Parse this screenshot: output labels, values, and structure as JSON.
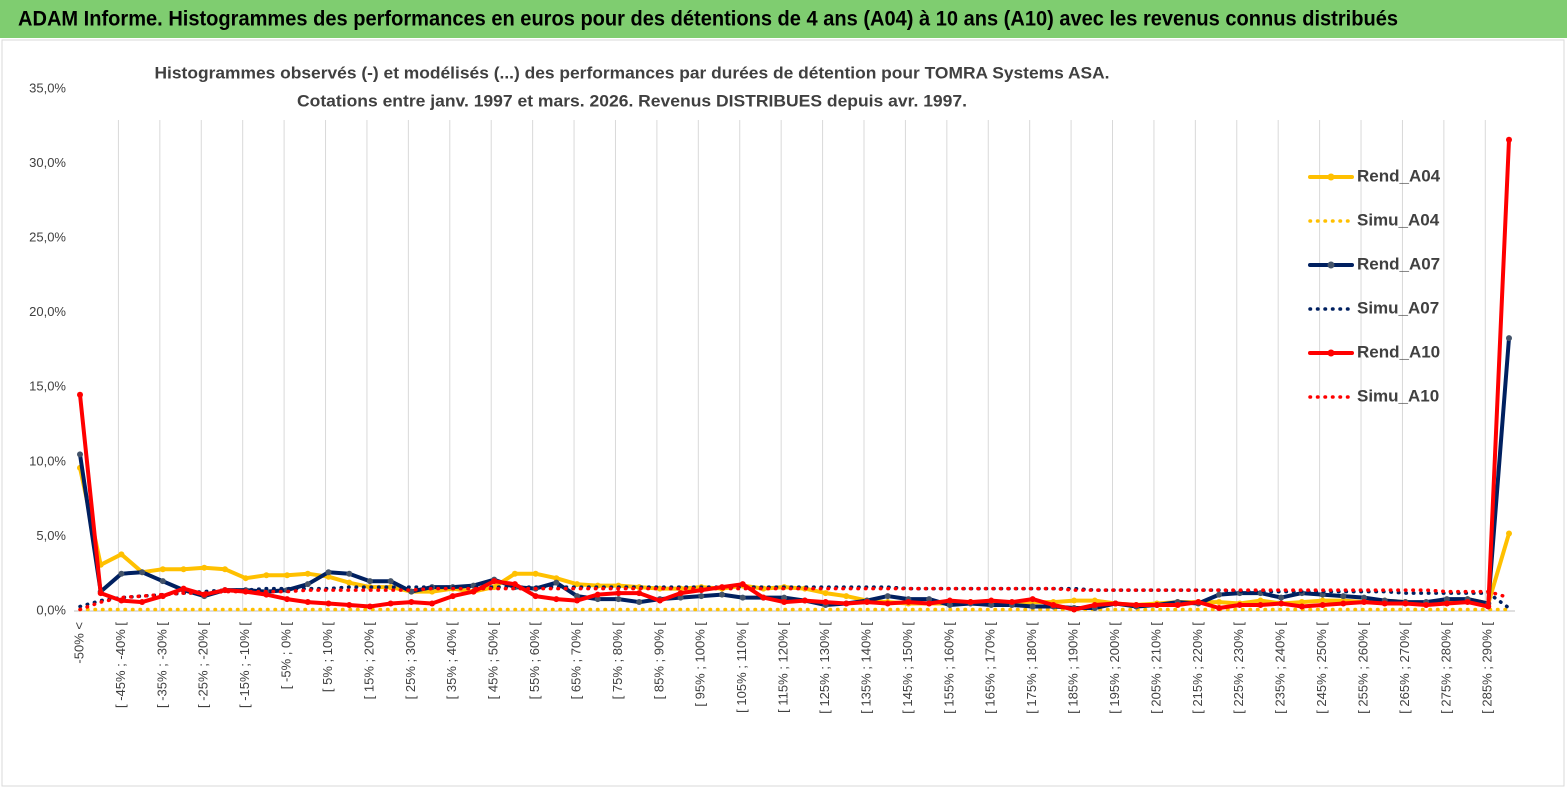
{
  "chart_data": {
    "type": "line",
    "title": "ADAM Informe. Histogrammes des performances en euros pour des détentions de 4 ans (A04) à 10 ans (A10) avec les revenus connus distribués",
    "subtitle": [
      "Histogrammes observés (-) et modélisés (...) des performances par durées de détention pour TOMRA Systems ASA.",
      "Cotations entre janv. 1997 et mars. 2026. Revenus DISTRIBUES depuis avr. 1997."
    ],
    "categories": [
      "-50% <",
      null,
      "[ -45% ; -40% [",
      null,
      "[ -35% ; -30% [",
      null,
      "[ -25% ; -20% [",
      null,
      "[ -15% ; -10% [",
      null,
      "[ -5% ; 0% [",
      null,
      "[ 5% ; 10% [",
      null,
      "[ 15% ; 20% [",
      null,
      "[ 25% ; 30% [",
      null,
      "[ 35% ; 40% [",
      null,
      "[ 45% ; 50% [",
      null,
      "[ 55% ; 60% [",
      null,
      "[ 65% ; 70% [",
      null,
      "[ 75% ; 80% [",
      null,
      "[ 85% ; 90% [",
      null,
      "[ 95% ; 100% [",
      null,
      "[ 105% ; 110% [",
      null,
      "[ 115% ; 120% [",
      null,
      "[ 125% ; 130% [",
      null,
      "[ 135% ; 140% [",
      null,
      "[ 145% ; 150% [",
      null,
      "[ 155% ; 160% [",
      null,
      "[ 165% ; 170% [",
      null,
      "[ 175% ; 180% [",
      null,
      "[ 185% ; 190% [",
      null,
      "[ 195% ; 200% [",
      null,
      "[ 205% ; 210% [",
      null,
      "[ 215% ; 220% [",
      null,
      "[ 225% ; 230% [",
      null,
      "[ 235% ; 240% [",
      null,
      "[ 245% ; 250% [",
      null,
      "[ 255% ; 260% [",
      null,
      "[ 265% ; 270% [",
      null,
      "[ 275% ; 280% [",
      null,
      "[ 285% ; 290% [",
      null
    ],
    "series": [
      {
        "name": "Rend_A04",
        "color": "#ffc000",
        "style": "solid",
        "marker": true,
        "values": [
          9.6,
          3.1,
          3.8,
          2.6,
          2.8,
          2.8,
          2.9,
          2.8,
          2.2,
          2.4,
          2.4,
          2.5,
          2.3,
          1.9,
          1.6,
          1.6,
          1.3,
          1.3,
          1.5,
          1.3,
          1.6,
          2.5,
          2.5,
          2.2,
          1.8,
          1.7,
          1.7,
          1.6,
          1.5,
          1.5,
          1.6,
          1.5,
          1.7,
          1.5,
          1.6,
          1.5,
          1.2,
          1.0,
          0.7,
          0.6,
          0.5,
          0.5,
          0.5,
          0.6,
          0.5,
          0.5,
          0.6,
          0.6,
          0.7,
          0.7,
          0.5,
          0.4,
          0.5,
          0.6,
          0.6,
          0.6,
          0.5,
          0.7,
          0.5,
          0.6,
          0.7,
          0.7,
          0.6,
          0.7,
          0.6,
          0.5,
          0.6,
          0.8,
          0.5,
          5.2
        ]
      },
      {
        "name": "Simu_A04",
        "color": "#ffc000",
        "style": "dotted",
        "marker": false,
        "values": [
          0.1,
          0.1,
          0.1,
          0.1,
          0.1,
          0.1,
          0.1,
          0.1,
          0.1,
          0.1,
          0.1,
          0.1,
          0.1,
          0.1,
          0.1,
          0.1,
          0.1,
          0.1,
          0.1,
          0.1,
          0.1,
          0.1,
          0.1,
          0.1,
          0.1,
          0.1,
          0.1,
          0.1,
          0.1,
          0.1,
          0.1,
          0.1,
          0.1,
          0.1,
          0.1,
          0.1,
          0.1,
          0.1,
          0.1,
          0.1,
          0.1,
          0.1,
          0.1,
          0.1,
          0.1,
          0.1,
          0.1,
          0.1,
          0.1,
          0.1,
          0.1,
          0.1,
          0.1,
          0.1,
          0.1,
          0.1,
          0.1,
          0.1,
          0.1,
          0.1,
          0.1,
          0.1,
          0.1,
          0.1,
          0.1,
          0.1,
          0.1,
          0.1,
          0.1,
          0.1
        ]
      },
      {
        "name": "Rend_A07",
        "color": "#002060",
        "style": "solid",
        "marker": true,
        "values": [
          10.5,
          1.3,
          2.5,
          2.6,
          2.0,
          1.4,
          1.0,
          1.4,
          1.4,
          1.3,
          1.4,
          1.8,
          2.6,
          2.5,
          2.0,
          2.0,
          1.3,
          1.6,
          1.6,
          1.7,
          2.1,
          1.6,
          1.5,
          1.9,
          1.0,
          0.8,
          0.8,
          0.6,
          0.8,
          0.9,
          1.0,
          1.1,
          0.9,
          0.9,
          0.9,
          0.7,
          0.4,
          0.5,
          0.7,
          1.0,
          0.8,
          0.8,
          0.4,
          0.5,
          0.4,
          0.4,
          0.3,
          0.3,
          0.2,
          0.2,
          0.5,
          0.3,
          0.4,
          0.6,
          0.5,
          1.1,
          1.2,
          1.2,
          0.9,
          1.2,
          1.1,
          1.0,
          0.9,
          0.7,
          0.6,
          0.6,
          0.8,
          0.8,
          0.5,
          18.3
        ]
      },
      {
        "name": "Simu_A07",
        "color": "#002060",
        "style": "dotted",
        "marker": false,
        "values": [
          0.3,
          0.7,
          0.9,
          1.0,
          1.1,
          1.2,
          1.3,
          1.4,
          1.4,
          1.5,
          1.5,
          1.5,
          1.5,
          1.6,
          1.6,
          1.6,
          1.6,
          1.6,
          1.6,
          1.6,
          1.6,
          1.6,
          1.6,
          1.6,
          1.6,
          1.6,
          1.6,
          1.6,
          1.6,
          1.6,
          1.6,
          1.6,
          1.6,
          1.6,
          1.6,
          1.6,
          1.6,
          1.6,
          1.6,
          1.6,
          1.5,
          1.5,
          1.5,
          1.5,
          1.5,
          1.5,
          1.5,
          1.5,
          1.5,
          1.4,
          1.4,
          1.4,
          1.4,
          1.4,
          1.4,
          1.4,
          1.3,
          1.3,
          1.3,
          1.3,
          1.3,
          1.3,
          1.3,
          1.3,
          1.2,
          1.2,
          1.2,
          1.2,
          1.2,
          0.2
        ]
      },
      {
        "name": "Rend_A10",
        "color": "#ff0000",
        "style": "solid",
        "marker": true,
        "values": [
          14.5,
          1.2,
          0.7,
          0.6,
          1.0,
          1.5,
          1.1,
          1.4,
          1.3,
          1.1,
          0.8,
          0.6,
          0.5,
          0.4,
          0.3,
          0.5,
          0.6,
          0.5,
          1.0,
          1.3,
          2.0,
          1.8,
          1.0,
          0.8,
          0.7,
          1.1,
          1.2,
          1.2,
          0.7,
          1.2,
          1.4,
          1.6,
          1.8,
          0.9,
          0.6,
          0.7,
          0.6,
          0.5,
          0.6,
          0.5,
          0.6,
          0.5,
          0.7,
          0.6,
          0.7,
          0.6,
          0.8,
          0.4,
          0.1,
          0.4,
          0.5,
          0.4,
          0.4,
          0.4,
          0.6,
          0.2,
          0.4,
          0.4,
          0.5,
          0.3,
          0.4,
          0.5,
          0.6,
          0.5,
          0.5,
          0.4,
          0.5,
          0.6,
          0.3,
          31.6
        ]
      },
      {
        "name": "Simu_A10",
        "color": "#ff0000",
        "style": "dotted",
        "marker": false,
        "values": [
          0.1,
          0.6,
          0.9,
          1.0,
          1.1,
          1.2,
          1.2,
          1.3,
          1.3,
          1.3,
          1.3,
          1.4,
          1.4,
          1.4,
          1.4,
          1.4,
          1.4,
          1.5,
          1.5,
          1.5,
          1.5,
          1.5,
          1.5,
          1.5,
          1.5,
          1.5,
          1.5,
          1.5,
          1.5,
          1.5,
          1.5,
          1.5,
          1.5,
          1.5,
          1.5,
          1.5,
          1.5,
          1.5,
          1.5,
          1.5,
          1.5,
          1.5,
          1.5,
          1.5,
          1.5,
          1.5,
          1.5,
          1.5,
          1.4,
          1.4,
          1.4,
          1.4,
          1.4,
          1.4,
          1.4,
          1.4,
          1.4,
          1.4,
          1.4,
          1.4,
          1.4,
          1.4,
          1.4,
          1.4,
          1.4,
          1.4,
          1.3,
          1.3,
          1.3,
          0.9
        ]
      }
    ],
    "ylim": [
      0,
      35
    ],
    "yticks": [
      {
        "value": 0,
        "label": "0,0%"
      },
      {
        "value": 5,
        "label": "5,0%"
      },
      {
        "value": 10,
        "label": "10,0%"
      },
      {
        "value": 15,
        "label": "15,0%"
      },
      {
        "value": 20,
        "label": "20,0%"
      },
      {
        "value": 25,
        "label": "25,0%"
      },
      {
        "value": 30,
        "label": "30,0%"
      },
      {
        "value": 35,
        "label": "35,0%"
      }
    ],
    "grid": "vertical",
    "legend": "right"
  }
}
